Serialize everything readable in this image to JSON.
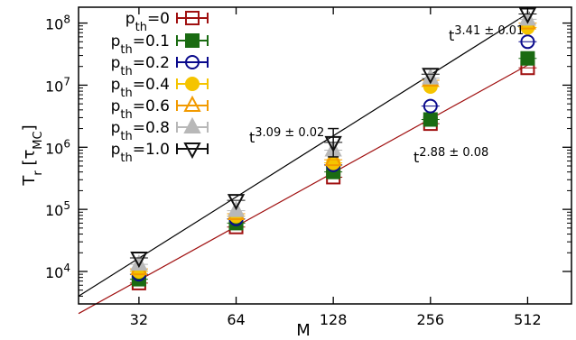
{
  "chart_data": {
    "type": "scatter",
    "xscale": "log2",
    "yscale": "log10",
    "xlabel": "M",
    "ylabel": "T",
    "ylabel_sub": "r",
    "ylabel_unit": "τ",
    "ylabel_unit_sub": "MC",
    "x_ticks": [
      32,
      64,
      128,
      256,
      512
    ],
    "x_tick_labels": [
      "32",
      "64",
      "128",
      "256",
      "512"
    ],
    "y_ticks": [
      10000,
      100000,
      1000000,
      10000000,
      100000000
    ],
    "y_tick_labels": [
      {
        "base": "10",
        "exp": "4"
      },
      {
        "base": "10",
        "exp": "5"
      },
      {
        "base": "10",
        "exp": "6"
      },
      {
        "base": "10",
        "exp": "7"
      },
      {
        "base": "10",
        "exp": "8"
      }
    ],
    "xlim": [
      20.8,
      700
    ],
    "ylim": [
      3000,
      180000000
    ],
    "legend_position": "top-left",
    "series": [
      {
        "name_main": "p",
        "name_sub": "th",
        "name_value": "=0",
        "marker": "square-open",
        "color": "#a01010",
        "x": [
          32,
          64,
          128,
          256,
          512
        ],
        "y": [
          6500,
          52000,
          330000,
          2400000,
          19000000
        ]
      },
      {
        "name_main": "p",
        "name_sub": "th",
        "name_value": "=0.1",
        "marker": "square-filled",
        "color": "#1a6b12",
        "x": [
          32,
          64,
          128,
          256,
          512
        ],
        "y": [
          7500,
          60000,
          400000,
          2800000,
          27000000
        ]
      },
      {
        "name_main": "p",
        "name_sub": "th",
        "name_value": "=0.2",
        "marker": "circle-open",
        "color": "#0a0a8c",
        "x": [
          32,
          64,
          128,
          256,
          512
        ],
        "y": [
          9000,
          70000,
          520000,
          4600000,
          50000000
        ]
      },
      {
        "name_main": "p",
        "name_sub": "th",
        "name_value": "=0.4",
        "marker": "circle-filled",
        "color": "#f5c400",
        "x": [
          32,
          64,
          128,
          256,
          512
        ],
        "y": [
          10000,
          78000,
          560000,
          9500000,
          85000000
        ]
      },
      {
        "name_main": "p",
        "name_sub": "th",
        "name_value": "=0.6",
        "marker": "triangle-open",
        "color": "#f29a00",
        "x": [
          32,
          64,
          128,
          256,
          512
        ],
        "y": [
          11000,
          85000,
          630000,
          12000000,
          100000000
        ]
      },
      {
        "name_main": "p",
        "name_sub": "th",
        "name_value": "=0.8",
        "marker": "triangle-filled",
        "color": "#b8b8b8",
        "x": [
          32,
          64,
          128,
          256,
          512
        ],
        "y": [
          13000,
          95000,
          900000,
          13000000,
          115000000
        ]
      },
      {
        "name_main": "p",
        "name_sub": "th",
        "name_value": "=1.0",
        "marker": "triangle-down-open",
        "color": "#111111",
        "x": [
          32,
          64,
          128,
          256,
          512
        ],
        "y": [
          16500,
          140000,
          1200000,
          15000000,
          140000000
        ]
      }
    ],
    "error_bars": {
      "128": {
        "series": "=1.0",
        "low": 700000,
        "high": 2000000
      }
    },
    "fit_lines": [
      {
        "color": "#000000",
        "x": [
          20.8,
          520
        ],
        "y": [
          4000,
          150000000
        ]
      },
      {
        "color": "#a01010",
        "x": [
          20.8,
          520
        ],
        "y": [
          2100,
          22000000
        ]
      }
    ],
    "annotations": [
      {
        "id": "fit-1.0",
        "base": "t",
        "exp": "3.41 ± 0.01"
      },
      {
        "id": "fit-0.0",
        "base": "t",
        "exp": "2.88 ± 0.08"
      },
      {
        "id": "fit-mid",
        "base": "t",
        "exp": "3.09 ± 0.02"
      }
    ]
  }
}
